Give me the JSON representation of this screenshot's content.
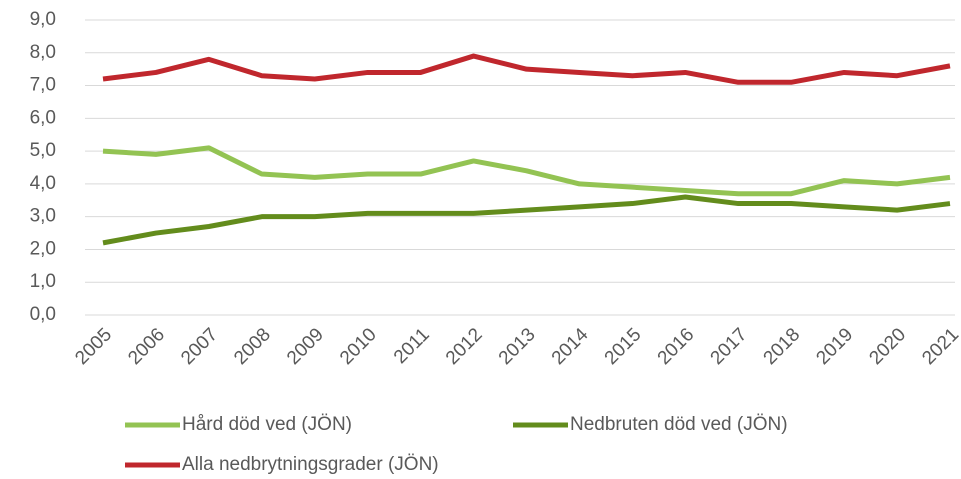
{
  "chart_data": {
    "type": "line",
    "categories": [
      "2005",
      "2006",
      "2007",
      "2008",
      "2009",
      "2010",
      "2011",
      "2012",
      "2013",
      "2014",
      "2015",
      "2016",
      "2017",
      "2018",
      "2019",
      "2020",
      "2021"
    ],
    "series": [
      {
        "name": "Hård död ved (JÖN)",
        "color": "#93c353",
        "values": [
          5.0,
          4.9,
          5.1,
          4.3,
          4.2,
          4.3,
          4.3,
          4.7,
          4.4,
          4.0,
          3.9,
          3.8,
          3.7,
          3.7,
          4.1,
          4.0,
          4.2
        ]
      },
      {
        "name": "Nedbruten död ved (JÖN)",
        "color": "#638c1c",
        "values": [
          2.2,
          2.5,
          2.7,
          3.0,
          3.0,
          3.1,
          3.1,
          3.1,
          3.2,
          3.3,
          3.4,
          3.6,
          3.4,
          3.4,
          3.3,
          3.2,
          3.4
        ]
      },
      {
        "name": "Alla nedbrytningsgrader (JÖN)",
        "color": "#c0272d",
        "values": [
          7.2,
          7.4,
          7.8,
          7.3,
          7.2,
          7.4,
          7.4,
          7.9,
          7.5,
          7.4,
          7.3,
          7.4,
          7.1,
          7.1,
          7.4,
          7.3,
          7.6
        ]
      }
    ],
    "ylim": [
      0,
      9
    ],
    "yticks": [
      {
        "value": 0,
        "label": "0,0"
      },
      {
        "value": 1,
        "label": "1,0"
      },
      {
        "value": 2,
        "label": "2,0"
      },
      {
        "value": 3,
        "label": "3,0"
      },
      {
        "value": 4,
        "label": "4,0"
      },
      {
        "value": 5,
        "label": "5,0"
      },
      {
        "value": 6,
        "label": "6,0"
      },
      {
        "value": 7,
        "label": "7,0"
      },
      {
        "value": 8,
        "label": "8,0"
      },
      {
        "value": 9,
        "label": "9,0"
      }
    ],
    "grid": true,
    "legend": "bottom"
  }
}
